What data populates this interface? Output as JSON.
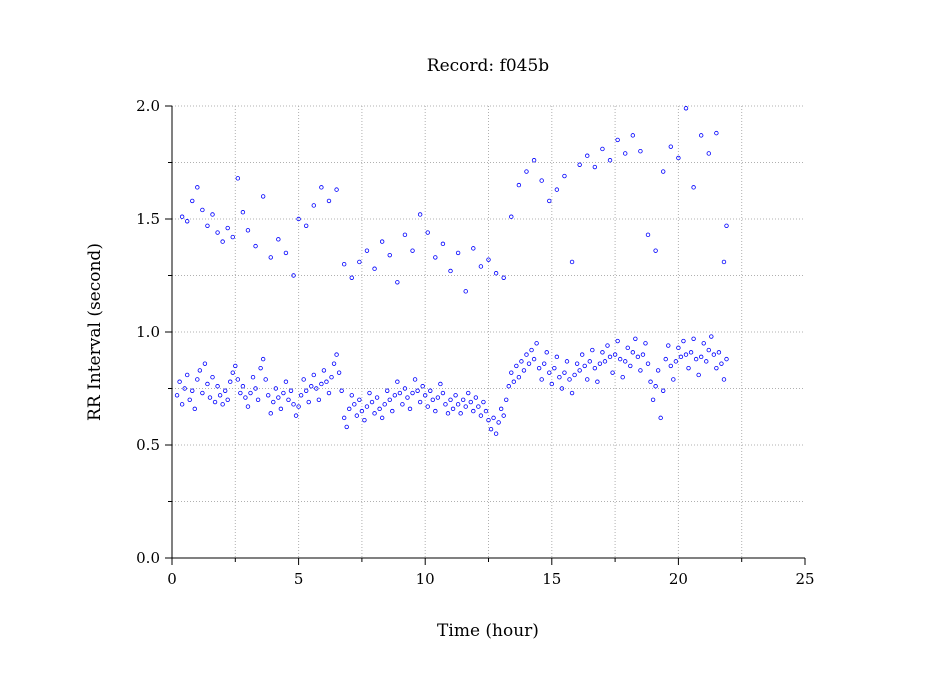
{
  "chart_data": {
    "type": "scatter",
    "title": "Record:  f045b",
    "xlabel": "Time (hour)",
    "ylabel": "RR Interval (second)",
    "xlim": [
      0,
      25
    ],
    "ylim": [
      0.0,
      2.0
    ],
    "x_ticks": [
      0,
      5,
      10,
      15,
      20,
      25
    ],
    "x_tick_labels": [
      "0",
      "5",
      "10",
      "15",
      "20",
      "25"
    ],
    "y_ticks": [
      0.0,
      0.5,
      1.0,
      1.5,
      2.0
    ],
    "y_tick_labels": [
      "0.0",
      "0.5",
      "1.0",
      "1.5",
      "2.0"
    ],
    "grid": true,
    "marker_color": "#0000ff",
    "marker": "open-circle",
    "series": [
      {
        "points": [
          [
            0.2,
            0.72
          ],
          [
            0.3,
            0.78
          ],
          [
            0.4,
            0.68
          ],
          [
            0.5,
            0.75
          ],
          [
            0.6,
            0.81
          ],
          [
            0.7,
            0.7
          ],
          [
            0.8,
            0.74
          ],
          [
            0.9,
            0.66
          ],
          [
            1.0,
            0.79
          ],
          [
            1.1,
            0.83
          ],
          [
            1.2,
            0.73
          ],
          [
            1.3,
            0.86
          ],
          [
            1.4,
            0.77
          ],
          [
            1.5,
            0.71
          ],
          [
            1.6,
            0.8
          ],
          [
            1.7,
            0.69
          ],
          [
            1.8,
            0.76
          ],
          [
            1.9,
            0.72
          ],
          [
            2.0,
            0.68
          ],
          [
            2.1,
            0.74
          ],
          [
            2.2,
            0.7
          ],
          [
            2.3,
            0.78
          ],
          [
            2.4,
            0.82
          ],
          [
            2.5,
            0.85
          ],
          [
            2.6,
            0.79
          ],
          [
            2.7,
            0.73
          ],
          [
            2.8,
            0.76
          ],
          [
            2.9,
            0.71
          ],
          [
            3.0,
            0.67
          ],
          [
            3.1,
            0.73
          ],
          [
            3.2,
            0.8
          ],
          [
            3.3,
            0.75
          ],
          [
            3.4,
            0.7
          ],
          [
            3.5,
            0.84
          ],
          [
            3.6,
            0.88
          ],
          [
            3.7,
            0.79
          ],
          [
            3.8,
            0.72
          ],
          [
            3.9,
            0.64
          ],
          [
            4.0,
            0.69
          ],
          [
            4.1,
            0.75
          ],
          [
            4.2,
            0.71
          ],
          [
            4.3,
            0.66
          ],
          [
            4.4,
            0.73
          ],
          [
            4.5,
            0.78
          ],
          [
            4.6,
            0.7
          ],
          [
            4.7,
            0.74
          ],
          [
            4.8,
            0.68
          ],
          [
            4.9,
            0.63
          ],
          [
            5.0,
            0.67
          ],
          [
            5.1,
            0.72
          ],
          [
            5.2,
            0.79
          ],
          [
            5.3,
            0.74
          ],
          [
            5.4,
            0.69
          ],
          [
            5.5,
            0.76
          ],
          [
            5.6,
            0.81
          ],
          [
            5.7,
            0.75
          ],
          [
            5.8,
            0.7
          ],
          [
            5.9,
            0.77
          ],
          [
            6.0,
            0.83
          ],
          [
            6.1,
            0.78
          ],
          [
            6.2,
            0.73
          ],
          [
            6.3,
            0.8
          ],
          [
            6.4,
            0.86
          ],
          [
            6.5,
            0.9
          ],
          [
            6.6,
            0.82
          ],
          [
            6.7,
            0.74
          ],
          [
            6.8,
            0.62
          ],
          [
            6.9,
            0.58
          ],
          [
            7.0,
            0.66
          ],
          [
            7.1,
            0.72
          ],
          [
            7.2,
            0.68
          ],
          [
            7.3,
            0.63
          ],
          [
            7.4,
            0.7
          ],
          [
            7.5,
            0.65
          ],
          [
            7.6,
            0.61
          ],
          [
            7.7,
            0.67
          ],
          [
            7.8,
            0.73
          ],
          [
            7.9,
            0.69
          ],
          [
            8.0,
            0.64
          ],
          [
            8.1,
            0.71
          ],
          [
            8.2,
            0.66
          ],
          [
            8.3,
            0.62
          ],
          [
            8.4,
            0.68
          ],
          [
            8.5,
            0.74
          ],
          [
            8.6,
            0.7
          ],
          [
            8.7,
            0.65
          ],
          [
            8.8,
            0.72
          ],
          [
            8.9,
            0.78
          ],
          [
            9.0,
            0.73
          ],
          [
            9.1,
            0.68
          ],
          [
            9.2,
            0.75
          ],
          [
            9.3,
            0.71
          ],
          [
            9.4,
            0.66
          ],
          [
            9.5,
            0.73
          ],
          [
            9.6,
            0.79
          ],
          [
            9.7,
            0.74
          ],
          [
            9.8,
            0.69
          ],
          [
            9.9,
            0.76
          ],
          [
            10.0,
            0.72
          ],
          [
            10.1,
            0.67
          ],
          [
            10.2,
            0.74
          ],
          [
            10.3,
            0.7
          ],
          [
            10.4,
            0.65
          ],
          [
            10.5,
            0.71
          ],
          [
            10.6,
            0.77
          ],
          [
            10.7,
            0.73
          ],
          [
            10.8,
            0.68
          ],
          [
            10.9,
            0.64
          ],
          [
            11.0,
            0.7
          ],
          [
            11.1,
            0.66
          ],
          [
            11.2,
            0.72
          ],
          [
            11.3,
            0.68
          ],
          [
            11.4,
            0.64
          ],
          [
            11.5,
            0.7
          ],
          [
            11.6,
            0.67
          ],
          [
            11.7,
            0.73
          ],
          [
            11.8,
            0.69
          ],
          [
            11.9,
            0.65
          ],
          [
            12.0,
            0.71
          ],
          [
            12.1,
            0.67
          ],
          [
            12.2,
            0.63
          ],
          [
            12.3,
            0.69
          ],
          [
            12.4,
            0.65
          ],
          [
            12.5,
            0.61
          ],
          [
            12.6,
            0.57
          ],
          [
            12.7,
            0.62
          ],
          [
            12.8,
            0.55
          ],
          [
            12.9,
            0.6
          ],
          [
            13.0,
            0.66
          ],
          [
            13.1,
            0.63
          ],
          [
            13.2,
            0.7
          ],
          [
            13.3,
            0.76
          ],
          [
            13.4,
            0.82
          ],
          [
            13.5,
            0.78
          ],
          [
            13.6,
            0.85
          ],
          [
            13.7,
            0.8
          ],
          [
            13.8,
            0.87
          ],
          [
            13.9,
            0.83
          ],
          [
            14.0,
            0.9
          ],
          [
            14.1,
            0.86
          ],
          [
            14.2,
            0.92
          ],
          [
            14.3,
            0.88
          ],
          [
            14.4,
            0.95
          ],
          [
            14.5,
            0.84
          ],
          [
            14.6,
            0.79
          ],
          [
            14.7,
            0.86
          ],
          [
            14.8,
            0.91
          ],
          [
            14.9,
            0.82
          ],
          [
            15.0,
            0.77
          ],
          [
            15.1,
            0.84
          ],
          [
            15.2,
            0.89
          ],
          [
            15.3,
            0.8
          ],
          [
            15.4,
            0.75
          ],
          [
            15.5,
            0.82
          ],
          [
            15.6,
            0.87
          ],
          [
            15.7,
            0.79
          ],
          [
            15.8,
            0.73
          ],
          [
            15.9,
            0.81
          ],
          [
            16.0,
            0.86
          ],
          [
            16.1,
            0.83
          ],
          [
            16.2,
            0.9
          ],
          [
            16.3,
            0.85
          ],
          [
            16.4,
            0.79
          ],
          [
            16.5,
            0.87
          ],
          [
            16.6,
            0.92
          ],
          [
            16.7,
            0.84
          ],
          [
            16.8,
            0.78
          ],
          [
            16.9,
            0.86
          ],
          [
            17.0,
            0.91
          ],
          [
            17.1,
            0.87
          ],
          [
            17.2,
            0.94
          ],
          [
            17.3,
            0.89
          ],
          [
            17.4,
            0.82
          ],
          [
            17.5,
            0.9
          ],
          [
            17.6,
            0.96
          ],
          [
            17.7,
            0.88
          ],
          [
            17.8,
            0.8
          ],
          [
            17.9,
            0.87
          ],
          [
            18.0,
            0.93
          ],
          [
            18.1,
            0.85
          ],
          [
            18.2,
            0.91
          ],
          [
            18.3,
            0.97
          ],
          [
            18.4,
            0.89
          ],
          [
            18.5,
            0.83
          ],
          [
            18.6,
            0.9
          ],
          [
            18.7,
            0.95
          ],
          [
            18.8,
            0.86
          ],
          [
            18.9,
            0.78
          ],
          [
            19.0,
            0.7
          ],
          [
            19.1,
            0.76
          ],
          [
            19.2,
            0.83
          ],
          [
            19.3,
            0.62
          ],
          [
            19.4,
            0.74
          ],
          [
            19.5,
            0.88
          ],
          [
            19.6,
            0.94
          ],
          [
            19.7,
            0.85
          ],
          [
            19.8,
            0.79
          ],
          [
            19.9,
            0.87
          ],
          [
            20.0,
            0.93
          ],
          [
            20.1,
            0.89
          ],
          [
            20.2,
            0.96
          ],
          [
            20.3,
            0.9
          ],
          [
            20.4,
            0.84
          ],
          [
            20.5,
            0.91
          ],
          [
            20.6,
            0.97
          ],
          [
            20.7,
            0.88
          ],
          [
            20.8,
            0.81
          ],
          [
            20.9,
            0.89
          ],
          [
            21.0,
            0.95
          ],
          [
            21.1,
            0.87
          ],
          [
            21.2,
            0.92
          ],
          [
            21.3,
            0.98
          ],
          [
            21.4,
            0.9
          ],
          [
            21.5,
            0.84
          ],
          [
            21.6,
            0.91
          ],
          [
            21.7,
            0.86
          ],
          [
            21.8,
            0.79
          ],
          [
            21.9,
            0.88
          ],
          [
            0.4,
            1.51
          ],
          [
            0.6,
            1.49
          ],
          [
            0.8,
            1.58
          ],
          [
            1.0,
            1.64
          ],
          [
            1.2,
            1.54
          ],
          [
            1.4,
            1.47
          ],
          [
            1.6,
            1.52
          ],
          [
            1.8,
            1.44
          ],
          [
            2.0,
            1.4
          ],
          [
            2.2,
            1.46
          ],
          [
            2.4,
            1.42
          ],
          [
            2.6,
            1.68
          ],
          [
            2.8,
            1.53
          ],
          [
            3.0,
            1.45
          ],
          [
            3.3,
            1.38
          ],
          [
            3.6,
            1.6
          ],
          [
            3.9,
            1.33
          ],
          [
            4.2,
            1.41
          ],
          [
            4.5,
            1.35
          ],
          [
            4.8,
            1.25
          ],
          [
            5.0,
            1.5
          ],
          [
            5.3,
            1.47
          ],
          [
            5.6,
            1.56
          ],
          [
            5.9,
            1.64
          ],
          [
            6.2,
            1.58
          ],
          [
            6.5,
            1.63
          ],
          [
            6.8,
            1.3
          ],
          [
            7.1,
            1.24
          ],
          [
            7.4,
            1.31
          ],
          [
            7.7,
            1.36
          ],
          [
            8.0,
            1.28
          ],
          [
            8.3,
            1.4
          ],
          [
            8.6,
            1.34
          ],
          [
            8.9,
            1.22
          ],
          [
            9.2,
            1.43
          ],
          [
            9.5,
            1.36
          ],
          [
            9.8,
            1.52
          ],
          [
            10.1,
            1.44
          ],
          [
            10.4,
            1.33
          ],
          [
            10.7,
            1.39
          ],
          [
            11.0,
            1.27
          ],
          [
            11.3,
            1.35
          ],
          [
            11.6,
            1.18
          ],
          [
            11.9,
            1.37
          ],
          [
            12.2,
            1.29
          ],
          [
            12.5,
            1.32
          ],
          [
            12.8,
            1.26
          ],
          [
            13.1,
            1.24
          ],
          [
            13.4,
            1.51
          ],
          [
            13.7,
            1.65
          ],
          [
            14.0,
            1.71
          ],
          [
            14.3,
            1.76
          ],
          [
            14.6,
            1.67
          ],
          [
            14.9,
            1.58
          ],
          [
            15.2,
            1.63
          ],
          [
            15.5,
            1.69
          ],
          [
            15.8,
            1.31
          ],
          [
            16.1,
            1.74
          ],
          [
            16.4,
            1.78
          ],
          [
            16.7,
            1.73
          ],
          [
            17.0,
            1.81
          ],
          [
            17.3,
            1.76
          ],
          [
            17.6,
            1.85
          ],
          [
            17.9,
            1.79
          ],
          [
            18.2,
            1.87
          ],
          [
            18.5,
            1.8
          ],
          [
            18.8,
            1.43
          ],
          [
            19.1,
            1.36
          ],
          [
            19.4,
            1.71
          ],
          [
            19.7,
            1.82
          ],
          [
            20.0,
            1.77
          ],
          [
            20.3,
            1.99
          ],
          [
            20.6,
            1.64
          ],
          [
            20.9,
            1.87
          ],
          [
            21.2,
            1.79
          ],
          [
            21.5,
            1.88
          ],
          [
            21.8,
            1.31
          ],
          [
            21.9,
            1.47
          ]
        ]
      }
    ]
  }
}
